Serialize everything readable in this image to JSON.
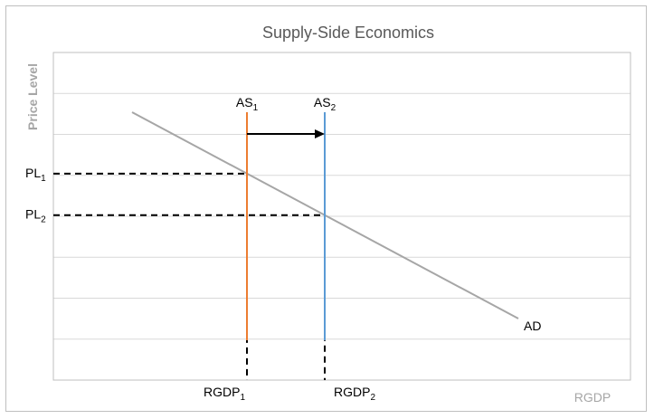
{
  "chart_data": {
    "type": "line",
    "title": "Supply-Side Economics",
    "xlabel": "RGDP",
    "ylabel": "Price Level",
    "grid": true,
    "gridlines": 8,
    "series": [
      {
        "name": "AD",
        "kind": "demand",
        "color": "#a6a6a6",
        "x": [
          0.0,
          1.0
        ],
        "y": [
          0.0,
          1.0
        ]
      },
      {
        "name": "AS1",
        "label_main": "AS",
        "label_sub": "1",
        "kind": "vertical-supply",
        "color": "#ed7d31"
      },
      {
        "name": "AS2",
        "label_main": "AS",
        "label_sub": "2",
        "kind": "vertical-supply",
        "color": "#5b9bd5"
      }
    ],
    "points": [
      {
        "price_label_main": "PL",
        "price_label_sub": "1",
        "rgdp_label_main": "RGDP",
        "rgdp_label_sub": "1"
      },
      {
        "price_label_main": "PL",
        "price_label_sub": "2",
        "rgdp_label_main": "RGDP",
        "rgdp_label_sub": "2"
      }
    ],
    "annotations": [
      {
        "type": "arrow",
        "from": "AS1",
        "to": "AS2",
        "color": "#000000"
      }
    ]
  }
}
